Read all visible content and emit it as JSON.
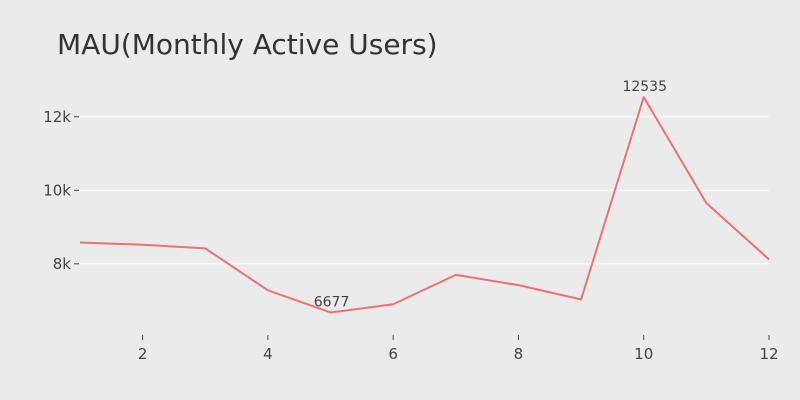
{
  "chart_data": {
    "type": "line",
    "title": "MAU(Monthly Active Users)",
    "xlabel": "",
    "ylabel": "",
    "x": [
      1,
      2,
      3,
      4,
      5,
      6,
      7,
      8,
      9,
      10,
      11,
      12
    ],
    "series": [
      {
        "values": [
          8580,
          8520,
          8420,
          7280,
          6677,
          6900,
          7700,
          7420,
          7030,
          12535,
          9650,
          8120
        ],
        "color": "#f07070"
      }
    ],
    "xlim": [
      1,
      12
    ],
    "ylim": [
      6200,
      13000
    ],
    "x_ticks": [
      2,
      4,
      6,
      8,
      10,
      12
    ],
    "x_tick_labels": [
      "2",
      "4",
      "6",
      "8",
      "10",
      "12"
    ],
    "y_ticks": [
      8000,
      10000,
      12000
    ],
    "y_tick_labels": [
      "8k",
      "10k",
      "12k"
    ],
    "annotations": [
      {
        "x": 5,
        "y": 6677,
        "text": "6677"
      },
      {
        "x": 10,
        "y": 12535,
        "text": "12535"
      }
    ],
    "grid": true,
    "legend": "none"
  }
}
